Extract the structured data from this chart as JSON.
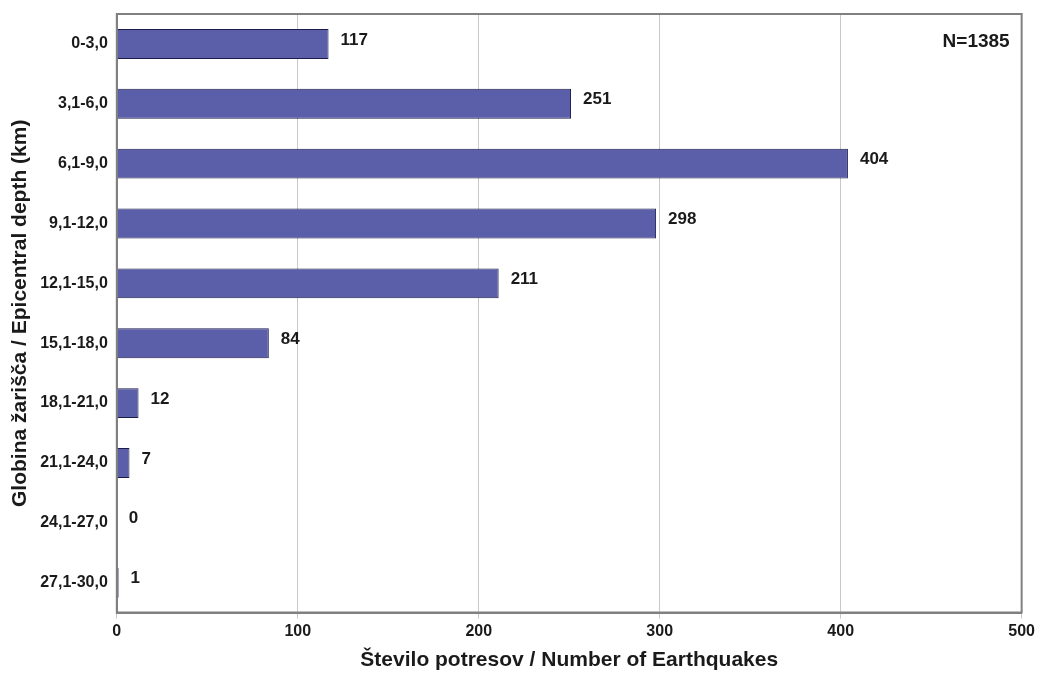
{
  "chart_data": {
    "type": "bar",
    "orientation": "horizontal",
    "xlabel": "Število potresov / Number of Earthquakes",
    "ylabel": "Globina žarišča / Epicentral depth (km)",
    "categories": [
      "0-3,0",
      "3,1-6,0",
      "6,1-9,0",
      "9,1-12,0",
      "12,1-15,0",
      "15,1-18,0",
      "18,1-21,0",
      "21,1-24,0",
      "24,1-27,0",
      "27,1-30,0"
    ],
    "values": [
      117,
      251,
      404,
      298,
      211,
      84,
      12,
      7,
      0,
      1
    ],
    "color": "#5b5ea8",
    "xlim": [
      0,
      500
    ],
    "xticks": [
      0,
      100,
      200,
      300,
      400,
      500
    ],
    "grid": "x",
    "data_labels": true,
    "annotations": [
      "N=1385"
    ]
  }
}
